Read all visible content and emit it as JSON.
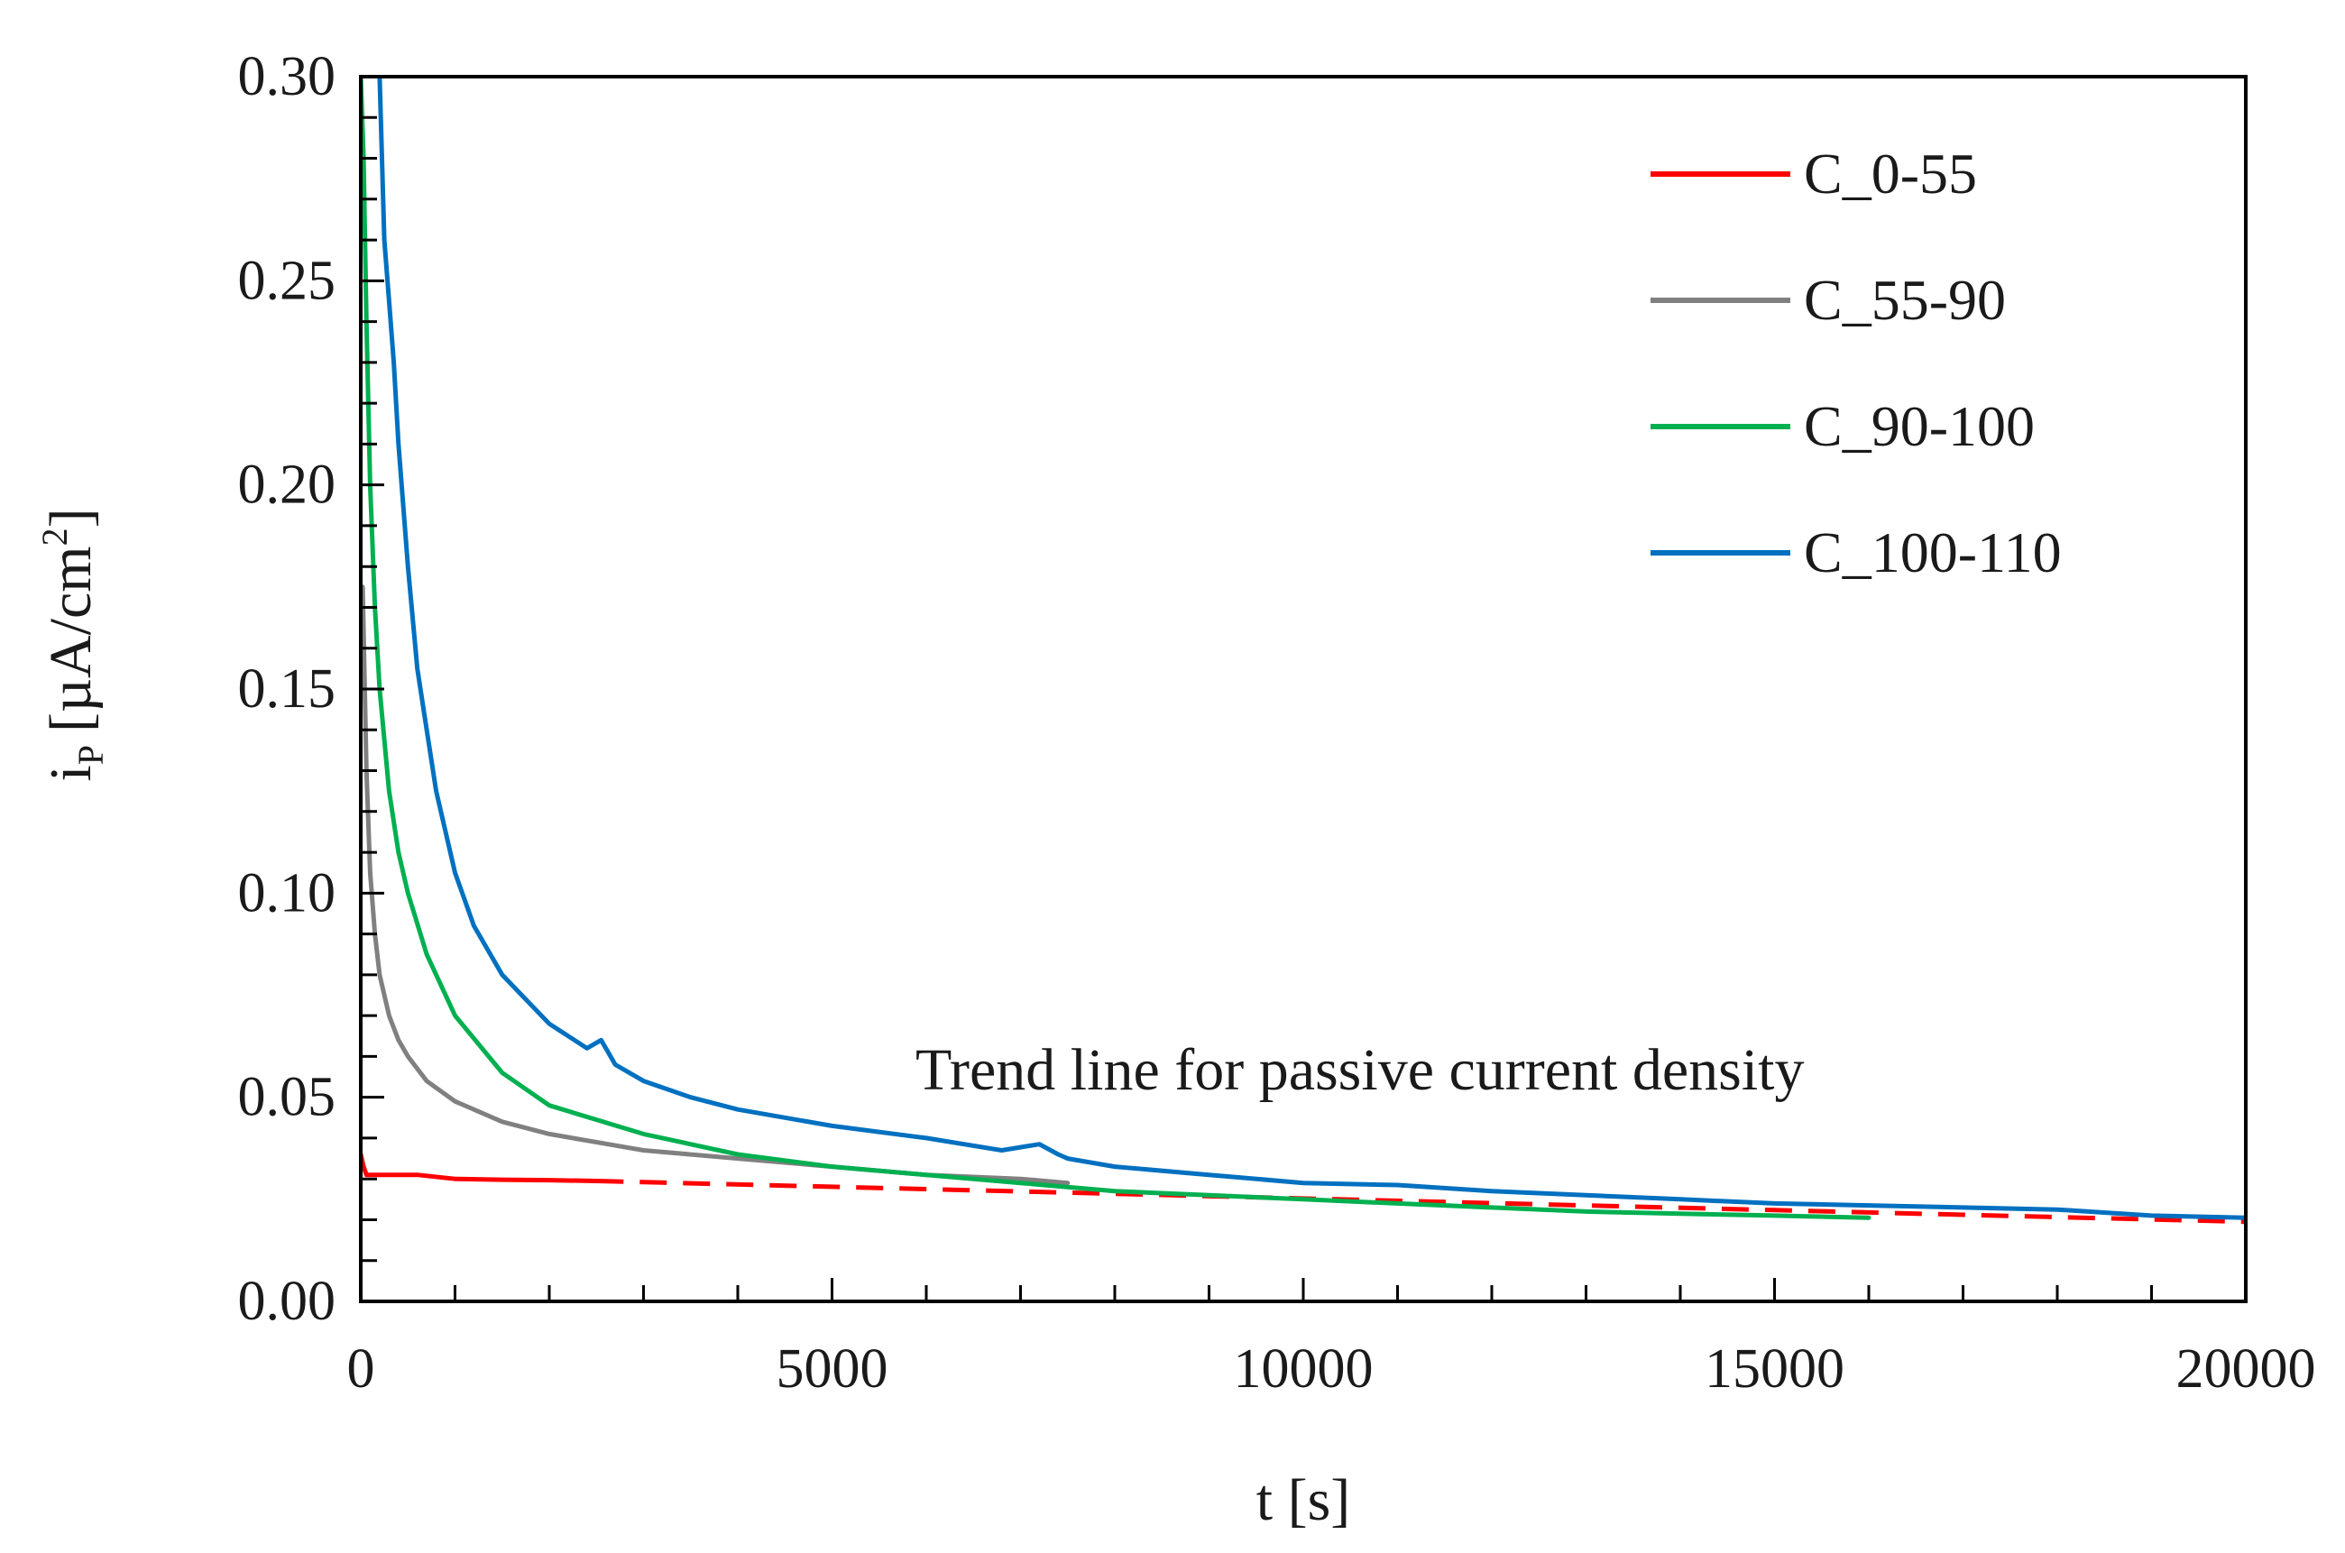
{
  "chart_data": {
    "type": "line",
    "title": "",
    "xlabel": "t [s]",
    "ylabel_main": "i",
    "ylabel_sub": "P",
    "ylabel_units": "[µA/cm",
    "ylabel_sup": "2",
    "ylabel_close": "]",
    "xlim": [
      0,
      20000
    ],
    "ylim": [
      0,
      0.3
    ],
    "xticks": [
      0,
      5000,
      10000,
      15000,
      20000
    ],
    "xtick_labels": [
      "0",
      "5000",
      "10000",
      "15000",
      "20000"
    ],
    "yticks": [
      0,
      0.05,
      0.1,
      0.15,
      0.2,
      0.25,
      0.3
    ],
    "ytick_labels": [
      "0.00",
      "0.05",
      "0.10",
      "0.15",
      "0.20",
      "0.25",
      "0.30"
    ],
    "grid": false,
    "legend_position": "top-right",
    "annotation": "Trend line for passive current density",
    "series": [
      {
        "name": "C_0-55",
        "color": "#ff0000",
        "x": [
          0,
          30,
          60,
          100,
          300,
          600,
          1000,
          1500,
          2000,
          2500
        ],
        "y": [
          0.036,
          0.033,
          0.031,
          0.031,
          0.031,
          0.031,
          0.03,
          0.0298,
          0.0297,
          0.0295
        ]
      },
      {
        "name": "C_55-90",
        "color": "#808080",
        "x": [
          20,
          60,
          100,
          150,
          200,
          300,
          400,
          500,
          700,
          1000,
          1500,
          2000,
          3000,
          4000,
          5000,
          6000,
          7000,
          7500
        ],
        "y": [
          0.175,
          0.13,
          0.105,
          0.09,
          0.08,
          0.07,
          0.064,
          0.06,
          0.054,
          0.049,
          0.044,
          0.041,
          0.037,
          0.035,
          0.033,
          0.031,
          0.03,
          0.029
        ]
      },
      {
        "name": "C_90-100",
        "color": "#00b050",
        "x": [
          0,
          30,
          60,
          100,
          150,
          200,
          300,
          400,
          500,
          700,
          1000,
          1500,
          2000,
          3000,
          4000,
          5000,
          6000,
          7000,
          8000,
          9000,
          10000,
          11000,
          12000,
          13000,
          14000,
          15000,
          16000
        ],
        "y": [
          0.3,
          0.28,
          0.24,
          0.2,
          0.17,
          0.15,
          0.125,
          0.11,
          0.1,
          0.085,
          0.07,
          0.056,
          0.048,
          0.041,
          0.036,
          0.033,
          0.031,
          0.029,
          0.027,
          0.026,
          0.025,
          0.024,
          0.023,
          0.022,
          0.0215,
          0.021,
          0.0205
        ]
      },
      {
        "name": "C_100-110",
        "color": "#0070c0",
        "x": [
          200,
          250,
          300,
          350,
          400,
          500,
          600,
          700,
          800,
          1000,
          1200,
          1500,
          2000,
          2400,
          2550,
          2700,
          3000,
          3500,
          4000,
          5000,
          6000,
          6800,
          7200,
          7400,
          7500,
          8000,
          9000,
          10000,
          11000,
          12000,
          13000,
          14000,
          15000,
          16000,
          17000,
          18000,
          19000,
          20000
        ],
        "y": [
          0.3,
          0.26,
          0.245,
          0.23,
          0.21,
          0.18,
          0.155,
          0.14,
          0.125,
          0.105,
          0.092,
          0.08,
          0.068,
          0.062,
          0.064,
          0.058,
          0.054,
          0.05,
          0.047,
          0.043,
          0.04,
          0.037,
          0.0385,
          0.036,
          0.035,
          0.033,
          0.031,
          0.029,
          0.0285,
          0.027,
          0.026,
          0.025,
          0.024,
          0.0235,
          0.023,
          0.0225,
          0.021,
          0.0205
        ]
      },
      {
        "name": "Trend line",
        "color": "#ff0000",
        "dashed": true,
        "x": [
          2500,
          20000
        ],
        "y": [
          0.0295,
          0.0195
        ]
      }
    ]
  }
}
